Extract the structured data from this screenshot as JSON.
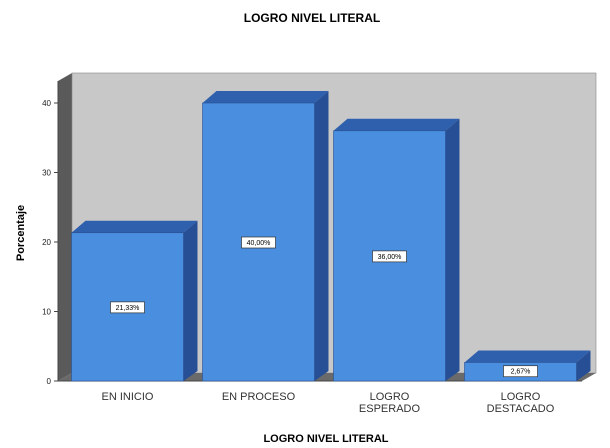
{
  "chart_data": {
    "type": "bar",
    "title": "LOGRO NIVEL LITERAL",
    "xlabel": "LOGRO NIVEL LITERAL",
    "ylabel": "Porcentaje",
    "ylim": [
      0,
      40
    ],
    "yticks": [
      0,
      10,
      20,
      30,
      40
    ],
    "categories": [
      [
        "EN INICIO"
      ],
      [
        "EN PROCESO"
      ],
      [
        "LOGRO",
        "ESPERADO"
      ],
      [
        "LOGRO",
        "DESTACADO"
      ]
    ],
    "values": [
      21.33,
      40.0,
      36.0,
      2.67
    ],
    "data_labels": [
      "21,33%",
      "40,00%",
      "36,00%",
      "2,67%"
    ],
    "style": "3d",
    "bar_color": "#4a8ee0",
    "bar_side_color": "#274f95",
    "bar_top_color": "#2f60ad",
    "plot_background": "#c8c8c8",
    "grid": false,
    "legend": "none"
  }
}
